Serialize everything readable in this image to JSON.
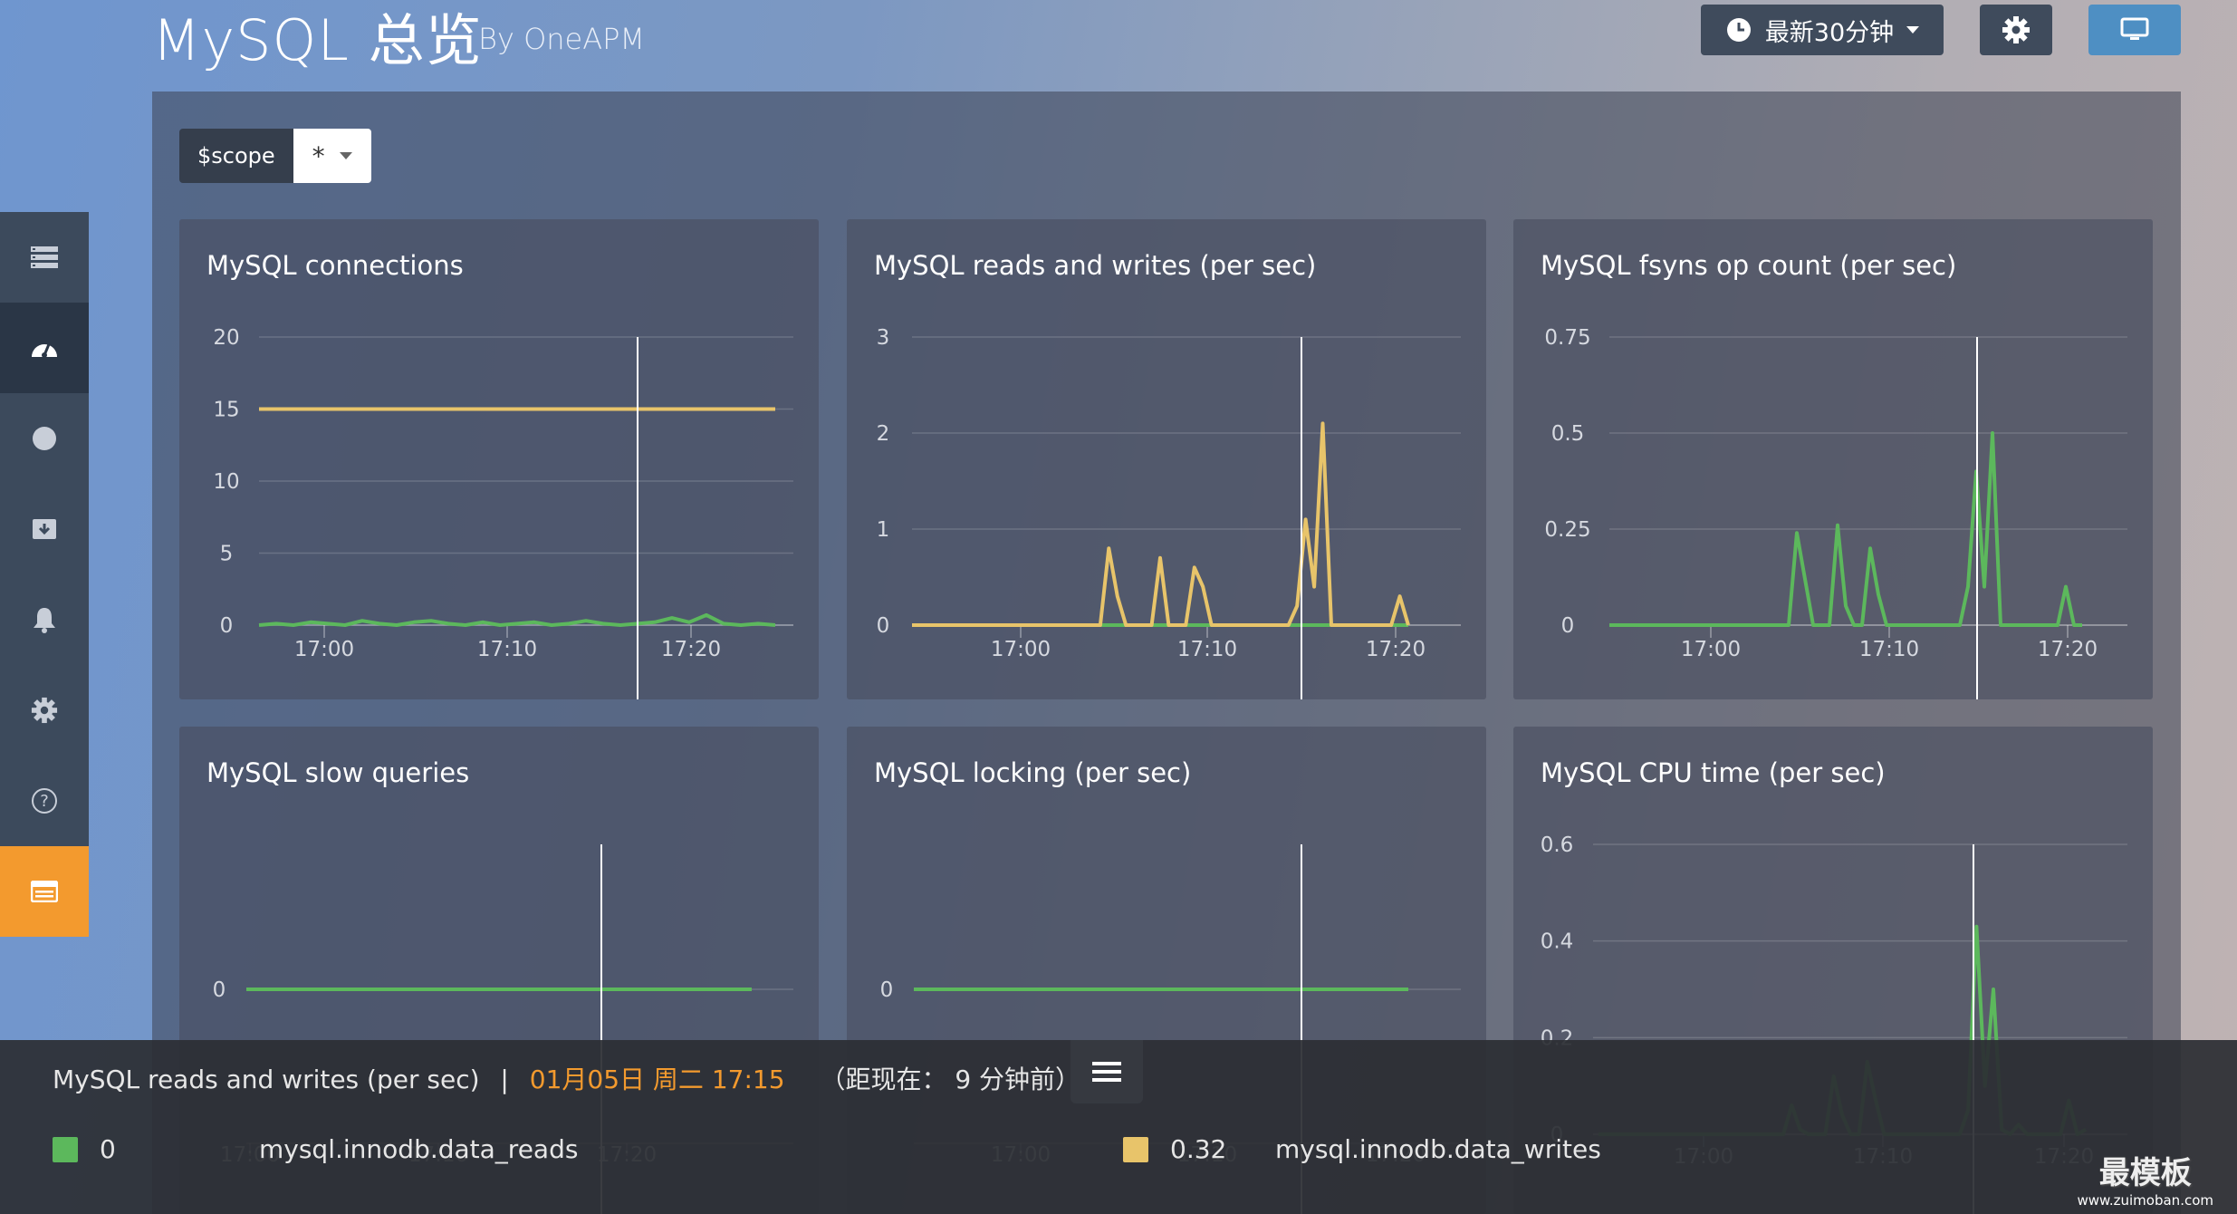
{
  "header": {
    "title": "MySQL 总览",
    "subtitle": "By OneAPM",
    "time_range_label": "最新30分钟"
  },
  "icons": {
    "clock": "clock-icon",
    "gear": "gear-icon",
    "monitor": "monitor-icon",
    "sidebar": [
      "list-icon",
      "dashboard-icon",
      "circle-icon",
      "archive-icon",
      "bell-icon",
      "gear-icon",
      "help-icon",
      "panel-icon"
    ]
  },
  "scope": {
    "label": "$scope",
    "value": "*"
  },
  "colors": {
    "green": "#5cb85c",
    "yellow": "#e8c46a",
    "accent_orange": "#f39a2e",
    "monitor_blue": "#4e8fc3"
  },
  "chart_data": [
    {
      "type": "line",
      "title": "MySQL connections",
      "x_ticks": [
        "17:00",
        "17:10",
        "17:20"
      ],
      "y_ticks": [
        "20",
        "15",
        "10",
        "5",
        "0"
      ],
      "ylim": [
        0,
        20
      ],
      "series": [
        {
          "color": "#e8c46a",
          "values": [
            15,
            15,
            15,
            15,
            15,
            15,
            15,
            15,
            15,
            15,
            15,
            15,
            15,
            15,
            15,
            15,
            15,
            15,
            15,
            15,
            15,
            15,
            15,
            15,
            15,
            15,
            15,
            15,
            15,
            15,
            15
          ]
        },
        {
          "color": "#5cb85c",
          "values": [
            0,
            0.1,
            0,
            0.2,
            0.1,
            0,
            0.3,
            0.1,
            0,
            0.2,
            0.3,
            0.1,
            0,
            0.2,
            0,
            0.1,
            0.2,
            0,
            0.1,
            0.3,
            0.1,
            0,
            0.1,
            0.2,
            0.5,
            0.2,
            0.7,
            0.1,
            0,
            0.1,
            0
          ]
        }
      ]
    },
    {
      "type": "line",
      "title": "MySQL reads and writes (per sec)",
      "x_ticks": [
        "17:00",
        "17:10",
        "17:20"
      ],
      "y_ticks": [
        "3",
        "2",
        "1",
        "0"
      ],
      "ylim": [
        0,
        3
      ],
      "series": [
        {
          "color": "#5cb85c",
          "values": [
            0,
            0,
            0,
            0,
            0,
            0,
            0,
            0,
            0,
            0,
            0,
            0,
            0,
            0,
            0,
            0,
            0,
            0,
            0,
            0,
            0,
            0,
            0,
            0,
            0,
            0,
            0,
            0,
            0,
            0,
            0,
            0,
            0,
            0,
            0,
            0,
            0,
            0,
            0,
            0,
            0,
            0,
            0,
            0,
            0,
            0,
            0,
            0,
            0,
            0,
            0,
            0,
            0,
            0,
            0,
            0,
            0,
            0,
            0
          ]
        },
        {
          "color": "#e8c46a",
          "values": [
            0,
            0,
            0,
            0,
            0,
            0,
            0,
            0,
            0,
            0,
            0,
            0,
            0,
            0,
            0,
            0,
            0,
            0,
            0,
            0,
            0,
            0,
            0,
            0.8,
            0.3,
            0,
            0,
            0,
            0,
            0.7,
            0,
            0,
            0,
            0.6,
            0.4,
            0,
            0,
            0,
            0,
            0,
            0,
            0,
            0,
            0,
            0,
            0.2,
            1.1,
            0.4,
            2.1,
            0,
            0,
            0,
            0,
            0,
            0,
            0,
            0,
            0.3,
            0
          ]
        }
      ]
    },
    {
      "type": "line",
      "title": "MySQL fsyns op count (per sec)",
      "x_ticks": [
        "17:00",
        "17:10",
        "17:20"
      ],
      "y_ticks": [
        "0.75",
        "0.5",
        "0.25",
        "0"
      ],
      "ylim": [
        0,
        0.75
      ],
      "series": [
        {
          "color": "#5cb85c",
          "values": [
            0,
            0,
            0,
            0,
            0,
            0,
            0,
            0,
            0,
            0,
            0,
            0,
            0,
            0,
            0,
            0,
            0,
            0,
            0,
            0,
            0,
            0,
            0,
            0.24,
            0.12,
            0,
            0,
            0,
            0.26,
            0.05,
            0,
            0,
            0.2,
            0.08,
            0,
            0,
            0,
            0,
            0,
            0,
            0,
            0,
            0,
            0,
            0.1,
            0.4,
            0.1,
            0.5,
            0,
            0,
            0,
            0,
            0,
            0,
            0,
            0,
            0.1,
            0,
            0
          ]
        }
      ]
    },
    {
      "type": "line",
      "title": "MySQL slow queries",
      "x_ticks": [
        "17:00",
        "17:10",
        "17:20"
      ],
      "y_ticks": [
        "0"
      ],
      "series": [
        {
          "color": "#5cb85c",
          "values": [
            0,
            0,
            0,
            0,
            0,
            0,
            0,
            0,
            0,
            0,
            0,
            0,
            0,
            0,
            0,
            0,
            0,
            0,
            0,
            0,
            0,
            0,
            0,
            0,
            0,
            0,
            0,
            0,
            0,
            0,
            0
          ]
        }
      ]
    },
    {
      "type": "line",
      "title": "MySQL locking (per sec)",
      "x_ticks": [
        "17:00",
        "17:10",
        "17:20"
      ],
      "y_ticks": [
        "0"
      ],
      "series": [
        {
          "color": "#5cb85c",
          "values": [
            0,
            0,
            0,
            0,
            0,
            0,
            0,
            0,
            0,
            0,
            0,
            0,
            0,
            0,
            0,
            0,
            0,
            0,
            0,
            0,
            0,
            0,
            0,
            0,
            0,
            0,
            0,
            0,
            0,
            0,
            0
          ]
        }
      ]
    },
    {
      "type": "line",
      "title": "MySQL CPU time (per sec)",
      "x_ticks": [
        "17:00",
        "17:10",
        "17:20"
      ],
      "y_ticks": [
        "0.6",
        "0.4",
        "0.2",
        "0"
      ],
      "ylim": [
        0,
        0.6
      ],
      "series": [
        {
          "color": "#5cb85c",
          "values": [
            0,
            0,
            0,
            0,
            0,
            0,
            0,
            0,
            0,
            0,
            0,
            0,
            0,
            0,
            0,
            0,
            0,
            0,
            0,
            0,
            0,
            0,
            0,
            0.06,
            0.01,
            0,
            0,
            0,
            0.12,
            0.04,
            0,
            0,
            0.15,
            0.07,
            0,
            0,
            0,
            0,
            0,
            0,
            0,
            0,
            0,
            0,
            0.05,
            0.43,
            0.1,
            0.3,
            0.01,
            0,
            0.02,
            0,
            0,
            0,
            0,
            0,
            0.07,
            0,
            0.01
          ]
        }
      ]
    }
  ],
  "tooltip": {
    "chart_name": "MySQL reads and writes (per sec)",
    "separator": "|",
    "datetime": "01月05日 周二 17:15",
    "relative": "（距现在： 9 分钟前）",
    "items": [
      {
        "color": "#5cb85c",
        "value": "0",
        "metric": "mysql.innodb.data_reads"
      },
      {
        "color": "#e8c46a",
        "value": "0.32",
        "metric": "mysql.innodb.data_writes"
      }
    ]
  },
  "watermark": {
    "main": "最模板",
    "url": "www.zuimoban.com"
  }
}
